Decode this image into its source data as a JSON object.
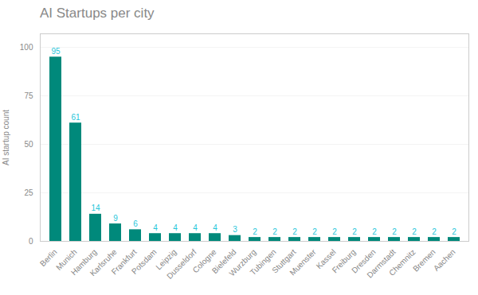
{
  "chart_data": {
    "type": "bar",
    "title": "AI Startups per city",
    "ylabel": "AI startup count",
    "categories": [
      "Berlin",
      "Munich",
      "Hamburg",
      "Karlsruhe",
      "Frankfurt",
      "Potsdam",
      "Leipzig",
      "Dusseldorf",
      "Cologne",
      "Bielefeld",
      "Wurzburg",
      "Tubingen",
      "Stuttgart",
      "Muenster",
      "Kassel",
      "Freiburg",
      "Dresden",
      "Darmstadt",
      "Chemnitz",
      "Bremen",
      "Aachen"
    ],
    "values": [
      95,
      61,
      14,
      9,
      6,
      4,
      4,
      4,
      4,
      3,
      2,
      2,
      2,
      2,
      2,
      2,
      2,
      2,
      2,
      2,
      2
    ],
    "color": "#00897B",
    "ylim": [
      0,
      107
    ],
    "yticks": [
      0,
      25,
      50,
      75,
      100
    ],
    "grid": true,
    "data_labels": true
  }
}
